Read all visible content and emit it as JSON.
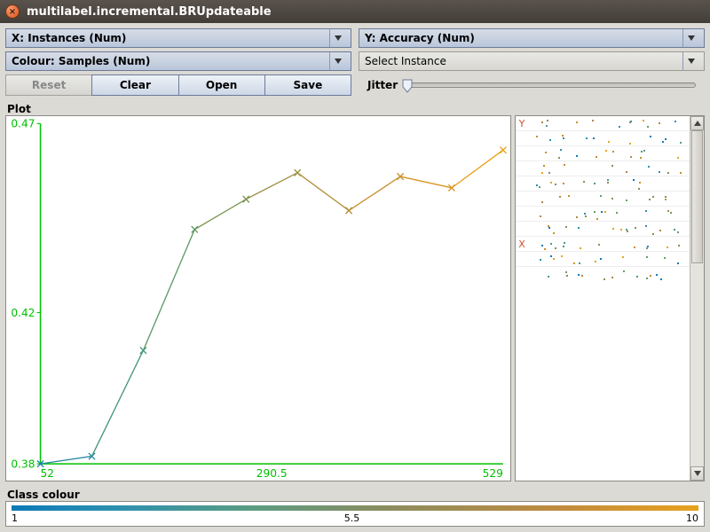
{
  "window": {
    "title": "multilabel.incremental.BRUpdateable"
  },
  "dropdowns": {
    "x": "X: Instances (Num)",
    "y": "Y: Accuracy (Num)",
    "colour": "Colour: Samples (Num)",
    "select": "Select Instance"
  },
  "buttons": {
    "reset": "Reset",
    "clear": "Clear",
    "open": "Open",
    "save": "Save"
  },
  "jitter": {
    "label": "Jitter",
    "value": 0
  },
  "plot": {
    "label": "Plot",
    "xlim": [
      52,
      529
    ],
    "ylim": [
      0.38,
      0.47
    ],
    "xticks": [
      52,
      290.5,
      529
    ],
    "yticks": [
      0.38,
      0.42,
      0.47
    ],
    "axis_color": "#00c000",
    "bg": "#ffffff",
    "series": {
      "marker": "x",
      "marker_size": 7,
      "line_width": 1.3,
      "points": [
        {
          "x": 52,
          "y": 0.38,
          "color": "#1a7fae"
        },
        {
          "x": 105,
          "y": 0.382,
          "color": "#2d8aa0"
        },
        {
          "x": 158,
          "y": 0.41,
          "color": "#43957c"
        },
        {
          "x": 211,
          "y": 0.442,
          "color": "#5b9964"
        },
        {
          "x": 264,
          "y": 0.45,
          "color": "#7a9550"
        },
        {
          "x": 317,
          "y": 0.457,
          "color": "#9a9044"
        },
        {
          "x": 370,
          "y": 0.447,
          "color": "#b58d38"
        },
        {
          "x": 423,
          "y": 0.456,
          "color": "#c98e2e"
        },
        {
          "x": 476,
          "y": 0.453,
          "color": "#d9941f"
        },
        {
          "x": 529,
          "y": 0.463,
          "color": "#e8a013"
        }
      ]
    }
  },
  "attribute_panel": {
    "rows": [
      {
        "label": "Y"
      },
      {
        "label": ""
      },
      {
        "label": ""
      },
      {
        "label": ""
      },
      {
        "label": ""
      },
      {
        "label": ""
      },
      {
        "label": ""
      },
      {
        "label": ""
      },
      {
        "label": "X"
      },
      {
        "label": ""
      },
      {
        "label": ""
      }
    ],
    "dot_colors": [
      "#0d7ab8",
      "#2d90b0",
      "#4a9a8e",
      "#6a9c68",
      "#8c8c5e",
      "#ad8a48",
      "#c98e2e",
      "#e8a21e"
    ]
  },
  "class_colour": {
    "label": "Class colour",
    "min": "1",
    "mid": "5.5",
    "max": "10",
    "gradient": [
      "#0d7ab8",
      "#2d90b0",
      "#5b9c82",
      "#8c8c5e",
      "#c08b3e",
      "#e8a21e"
    ]
  }
}
